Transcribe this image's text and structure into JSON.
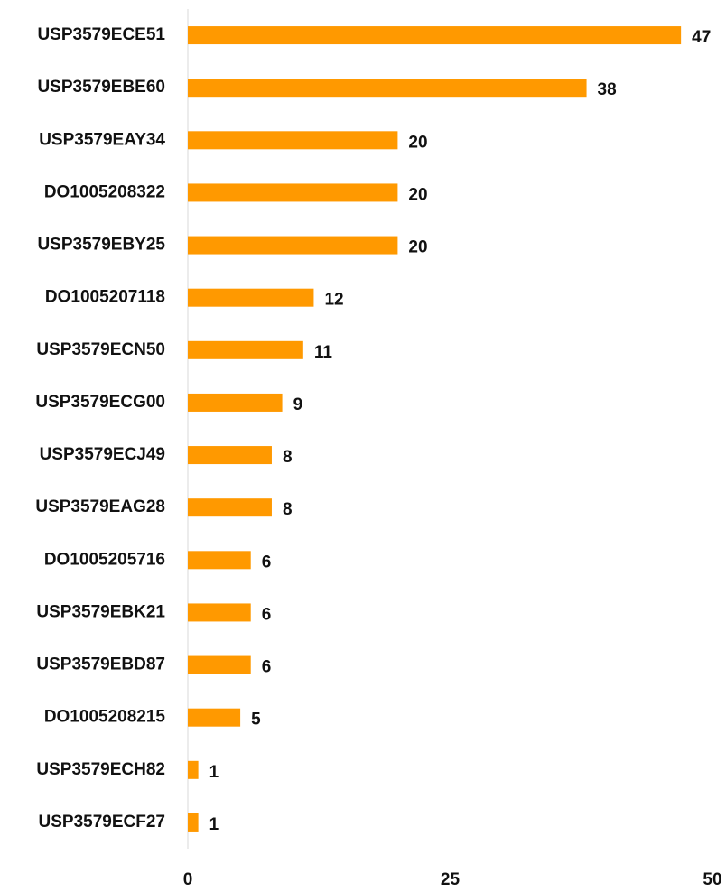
{
  "chart_data": {
    "type": "bar",
    "orientation": "horizontal",
    "categories": [
      "USP3579ECE51",
      "USP3579EBE60",
      "USP3579EAY34",
      "DO1005208322",
      "USP3579EBY25",
      "DO1005207118",
      "USP3579ECN50",
      "USP3579ECG00",
      "USP3579ECJ49",
      "USP3579EAG28",
      "DO1005205716",
      "USP3579EBK21",
      "USP3579EBD87",
      "DO1005208215",
      "USP3579ECH82",
      "USP3579ECF27"
    ],
    "values": [
      47,
      38,
      20,
      20,
      20,
      12,
      11,
      9,
      8,
      8,
      6,
      6,
      6,
      5,
      1,
      1
    ],
    "color": "#ff9900",
    "xlim": [
      0,
      50
    ],
    "xticks": [
      0,
      25,
      50
    ],
    "grid": false,
    "data_labels": true
  }
}
